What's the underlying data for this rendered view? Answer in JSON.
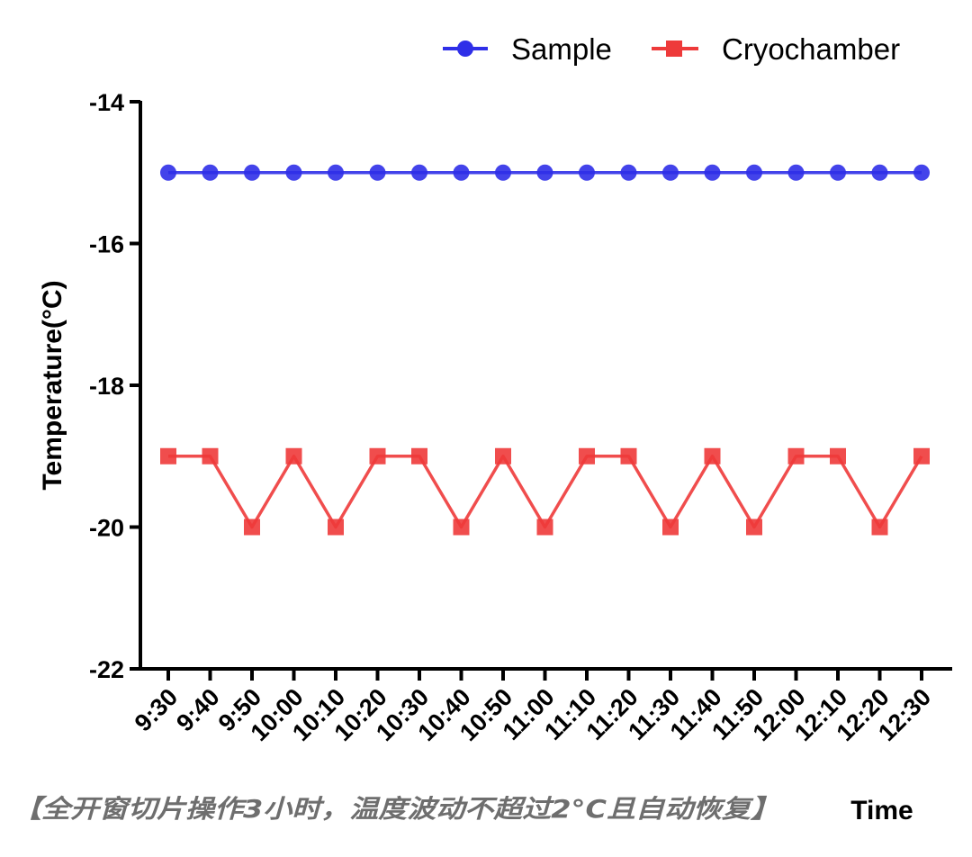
{
  "chart_data": {
    "type": "line",
    "xlabel": "Time",
    "ylabel": "Temperature(°C)",
    "ylim": [
      -22,
      -14
    ],
    "yticks": [
      "-14",
      "-16",
      "-18",
      "-20",
      "-22"
    ],
    "categories": [
      "9:30",
      "9:40",
      "9:50",
      "10:00",
      "10:10",
      "10:20",
      "10:30",
      "10:40",
      "10:50",
      "11:00",
      "11:10",
      "11:20",
      "11:30",
      "11:40",
      "11:50",
      "12:00",
      "12:10",
      "12:20",
      "12:30"
    ],
    "series": [
      {
        "name": "Sample",
        "color": "#2f2fe8",
        "marker": "circle",
        "values": [
          -15,
          -15,
          -15,
          -15,
          -15,
          -15,
          -15,
          -15,
          -15,
          -15,
          -15,
          -15,
          -15,
          -15,
          -15,
          -15,
          -15,
          -15,
          -15
        ]
      },
      {
        "name": "Cryochamber",
        "color": "#ee3a3a",
        "marker": "square",
        "values": [
          -19,
          -19,
          -20,
          -19,
          -20,
          -19,
          -19,
          -20,
          -19,
          -20,
          -19,
          -19,
          -20,
          -19,
          -20,
          -19,
          -19,
          -20,
          -19
        ]
      }
    ],
    "legend_position": "top-right",
    "grid": false,
    "annotation": "【全开窗切片操作3小时，温度波动不超过2°C且自动恢复】"
  }
}
